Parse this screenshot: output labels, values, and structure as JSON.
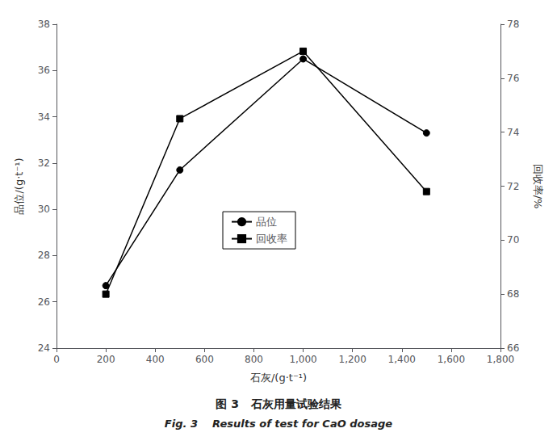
{
  "chart_data": {
    "type": "line",
    "title": "图 3   石灰用量试验结果",
    "subtitle": "Fig. 3    Results of test for CaO dosage",
    "xlabel": "石灰/(g·t⁻¹)",
    "ylabel": "品位/(g·t⁻¹)",
    "y2label": "回收率/%",
    "x": [
      200,
      500,
      1000,
      1500
    ],
    "series": [
      {
        "name": "品位",
        "color": "black",
        "marker": "circle",
        "values": [
          26.7,
          31.7,
          36.5,
          33.3
        ]
      },
      {
        "name": "回收率",
        "color": "black",
        "marker": "square",
        "axis": "y2",
        "values": [
          68.0,
          74.5,
          77.0,
          71.8
        ]
      }
    ],
    "xlim": [
      0,
      1800
    ],
    "xticks": [
      0,
      200,
      400,
      600,
      800,
      1000,
      1200,
      1400,
      1600,
      1800
    ],
    "ylim": [
      24,
      38
    ],
    "yticks": [
      24,
      26,
      28,
      30,
      32,
      34,
      36,
      38
    ],
    "y2lim": [
      66,
      78
    ],
    "y2ticks": [
      66,
      68,
      70,
      72,
      74,
      76,
      78
    ],
    "legend": "center",
    "grid": false
  }
}
